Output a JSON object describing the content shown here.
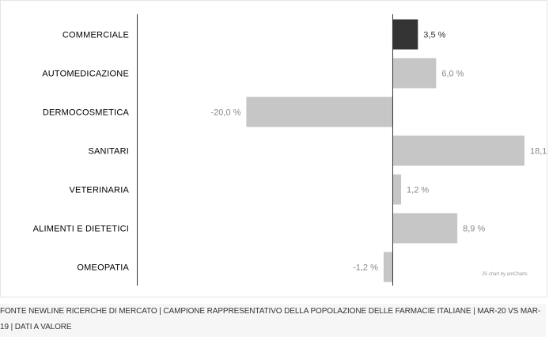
{
  "chart_data": {
    "type": "bar",
    "orientation": "horizontal",
    "categories": [
      "COMMERCIALE",
      "AUTOMEDICAZIONE",
      "DERMOCOSMETICA",
      "SANITARI",
      "VETERINARIA",
      "ALIMENTI E DIETETICI",
      "OMEOPATIA"
    ],
    "values": [
      3.5,
      6.0,
      -20.0,
      18.1,
      1.2,
      8.9,
      -1.2
    ],
    "value_labels": [
      "3,5 %",
      "6,0 %",
      "-20,0 %",
      "18,1",
      "1,2 %",
      "8,9 %",
      "-1,2 %"
    ],
    "highlighted_category": "COMMERCIALE",
    "xlim": [
      -35,
      18.1
    ],
    "grid": false,
    "colors": {
      "highlight": "#333333",
      "bars": "#c6c6c6",
      "axis": "#333333"
    }
  },
  "credit": "JS chart by amCharts",
  "footer": "FONTE NEWLINE RICERCHE DI MERCATO | CAMPIONE RAPPRESENTATIVO DELLA POPOLAZIONE DELLE FARMACIE ITALIANE | MAR-20 VS MAR-19 | DATI A VALORE"
}
